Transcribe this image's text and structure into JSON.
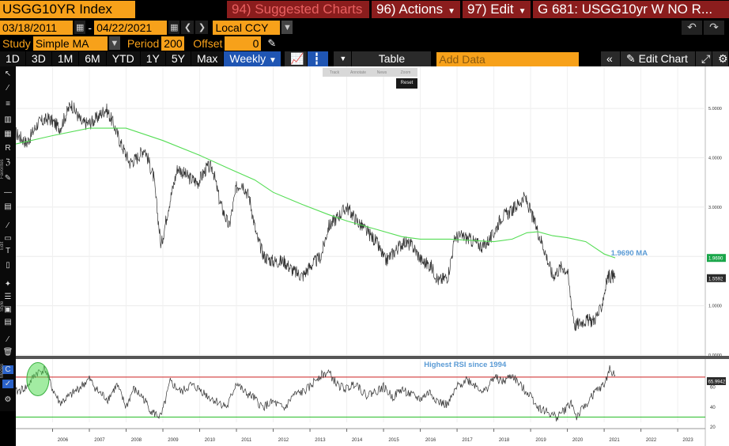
{
  "header": {
    "ticker": "USGG10YR Index",
    "tabs": [
      {
        "label": "94) Suggested Charts"
      },
      {
        "label": "96) Actions"
      },
      {
        "label": "97) Edit"
      },
      {
        "label": "G 681: USGG10yr W NO R..."
      }
    ]
  },
  "dates": {
    "start": "03/18/2011",
    "end": "04/22/2021",
    "currency": "Local CCY"
  },
  "study": {
    "label": "Study",
    "type": "Simple MA",
    "period_label": "Period",
    "period": "200",
    "offset_label": "Offset",
    "offset": "0"
  },
  "toolbar": {
    "ranges": [
      "1D",
      "3D",
      "1M",
      "6M",
      "YTD",
      "1Y",
      "5Y",
      "Max"
    ],
    "frequency": "Weekly",
    "table": "Table",
    "add_data_placeholder": "Add Data",
    "edit_chart": "Edit Chart"
  },
  "zoom_tools": [
    "Track",
    "Annotate",
    "News",
    "Zoom"
  ],
  "reset_label": "Reset",
  "side_labels": {
    "favorites": "Favorites",
    "edit": "Edit",
    "style": "Style",
    "modes": "Modes"
  },
  "colors": {
    "accent_orange": "#f7a11a",
    "tab_red": "#8b1d1d",
    "price": "#333333",
    "ma": "#55dd55",
    "rsi_upper": "#cc2222",
    "rsi_lower": "#22bb22",
    "annotation": "#5b9bd5"
  },
  "chart_data": [
    {
      "type": "line",
      "title": "",
      "series": [
        {
          "name": "",
          "x": [
            2005.0,
            2005.3,
            2005.6,
            2005.9,
            2006.2,
            2006.5,
            2006.8,
            2007.0,
            2007.2,
            2007.45,
            2007.65,
            2007.85,
            2008.1,
            2008.3,
            2008.5,
            2008.75,
            2008.95,
            2009.15,
            2009.4,
            2009.7,
            2009.95,
            2010.2,
            2010.35,
            2010.55,
            2010.8,
            2011.0,
            2011.15,
            2011.35,
            2011.55,
            2011.75,
            2012.0,
            2012.3,
            2012.55,
            2012.8,
            2013.0,
            2013.3,
            2013.5,
            2013.75,
            2014.0,
            2014.3,
            2014.55,
            2014.8,
            2015.05,
            2015.3,
            2015.55,
            2015.8,
            2016.05,
            2016.3,
            2016.5,
            2016.75,
            2016.95,
            2017.2,
            2017.45,
            2017.7,
            2017.95,
            2018.2,
            2018.45,
            2018.7,
            2018.85,
            2019.1,
            2019.35,
            2019.6,
            2019.85,
            2020.0,
            2020.1,
            2020.2,
            2020.45,
            2020.7,
            2020.9,
            2021.1,
            2021.3
          ],
          "values": [
            4.5,
            4.3,
            4.7,
            4.8,
            4.6,
            5.1,
            4.7,
            4.7,
            4.8,
            5.0,
            4.7,
            4.3,
            3.9,
            4.0,
            4.2,
            3.6,
            2.2,
            3.0,
            3.8,
            3.6,
            3.5,
            3.8,
            3.8,
            3.1,
            2.6,
            3.4,
            3.5,
            3.2,
            2.4,
            2.0,
            1.9,
            1.9,
            1.7,
            1.6,
            1.8,
            2.0,
            2.6,
            2.8,
            3.0,
            2.7,
            2.5,
            2.3,
            1.9,
            2.1,
            2.3,
            2.2,
            1.9,
            1.8,
            1.5,
            1.6,
            2.4,
            2.4,
            2.3,
            2.2,
            2.4,
            2.8,
            2.9,
            3.1,
            3.2,
            2.7,
            2.2,
            1.6,
            1.8,
            1.7,
            1.1,
            0.6,
            0.7,
            0.7,
            0.9,
            1.6,
            1.6
          ]
        },
        {
          "name": "MA",
          "x": [
            2005.0,
            2006.0,
            2007.0,
            2008.0,
            2009.0,
            2010.0,
            2010.8,
            2011.5,
            2012.0,
            2012.8,
            2013.5,
            2014.0,
            2014.8,
            2015.5,
            2016.0,
            2016.8,
            2017.5,
            2018.0,
            2018.5,
            2018.9,
            2019.2,
            2019.6,
            2020.0,
            2020.5,
            2021.0,
            2021.3
          ],
          "values": [
            4.28,
            4.45,
            4.6,
            4.6,
            4.35,
            4.05,
            3.78,
            3.55,
            3.3,
            3.05,
            2.85,
            2.72,
            2.55,
            2.4,
            2.35,
            2.35,
            2.32,
            2.3,
            2.35,
            2.48,
            2.5,
            2.42,
            2.38,
            2.3,
            2.05,
            1.97
          ]
        }
      ],
      "ylim": [
        0,
        5.5
      ],
      "y_ticks": [
        "0.0000",
        "1.0000",
        "2.0000",
        "3.0000",
        "4.0000",
        "5.0000"
      ],
      "last_price": "1.5592",
      "ma_value": "1.9690",
      "ma_annotation": "1.9690 MA",
      "grid": true,
      "legend": "none"
    },
    {
      "type": "line",
      "series": [
        {
          "name": "",
          "x": [
            2005.0,
            2005.3,
            2005.55,
            2005.8,
            2006.0,
            2006.2,
            2006.5,
            2006.75,
            2007.0,
            2007.25,
            2007.5,
            2007.75,
            2008.0,
            2008.2,
            2008.45,
            2008.7,
            2008.95,
            2009.2,
            2009.5,
            2009.75,
            2010.0,
            2010.25,
            2010.5,
            2010.75,
            2011.0,
            2011.2,
            2011.45,
            2011.7,
            2012.0,
            2012.3,
            2012.55,
            2012.8,
            2013.0,
            2013.2,
            2013.5,
            2013.75,
            2014.0,
            2014.25,
            2014.5,
            2014.75,
            2015.0,
            2015.25,
            2015.5,
            2015.75,
            2016.0,
            2016.25,
            2016.5,
            2016.75,
            2017.0,
            2017.25,
            2017.5,
            2017.75,
            2018.0,
            2018.25,
            2018.5,
            2018.75,
            2019.0,
            2019.2,
            2019.45,
            2019.7,
            2019.95,
            2020.1,
            2020.25,
            2020.5,
            2020.75,
            2021.0,
            2021.15,
            2021.3
          ],
          "values": [
            55,
            60,
            74,
            78,
            58,
            44,
            52,
            60,
            68,
            55,
            48,
            62,
            40,
            58,
            50,
            35,
            30,
            65,
            55,
            62,
            58,
            50,
            45,
            40,
            65,
            55,
            50,
            40,
            45,
            38,
            52,
            55,
            60,
            70,
            75,
            62,
            58,
            65,
            52,
            55,
            60,
            50,
            58,
            52,
            48,
            55,
            45,
            42,
            60,
            68,
            62,
            55,
            70,
            65,
            72,
            60,
            52,
            40,
            35,
            30,
            38,
            45,
            30,
            42,
            55,
            62,
            78,
            72
          ]
        }
      ],
      "ylim": [
        20,
        85
      ],
      "y_ticks": [
        "20",
        "40",
        "60"
      ],
      "upper_line": 70,
      "lower_line": 30,
      "last_value": "65.9942",
      "annotation": "Highest RSI since 1994"
    }
  ],
  "x_axis": {
    "range": [
      2005.0,
      2023.75
    ],
    "ticks": [
      "2006",
      "2007",
      "2008",
      "2009",
      "2010",
      "2011",
      "2012",
      "2013",
      "2014",
      "2015",
      "2016",
      "2017",
      "2018",
      "2019",
      "2020",
      "2021",
      "2022",
      "2023"
    ]
  }
}
